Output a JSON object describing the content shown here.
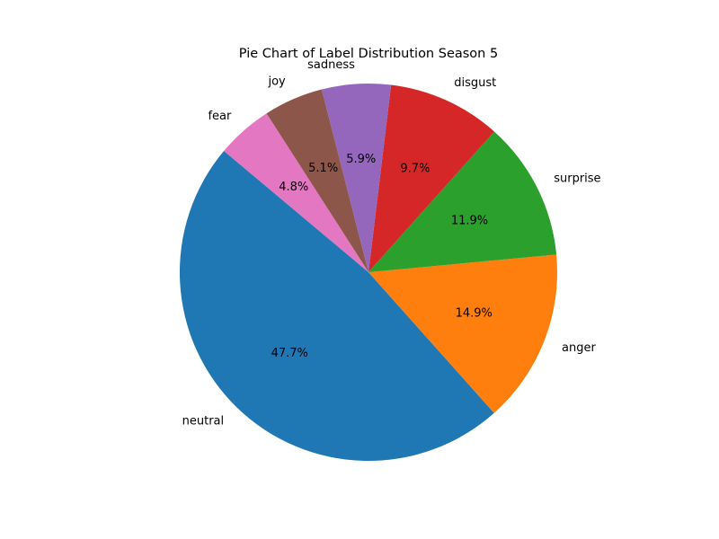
{
  "chart_data": {
    "type": "pie",
    "title": "Pie Chart of Label Distribution Season 5",
    "start_angle_deg": 140,
    "direction": "counterclockwise",
    "slices": [
      {
        "label": "neutral",
        "value": 47.7,
        "pct_text": "47.7%",
        "color": "#1f77b4"
      },
      {
        "label": "anger",
        "value": 14.9,
        "pct_text": "14.9%",
        "color": "#ff7f0e"
      },
      {
        "label": "surprise",
        "value": 11.9,
        "pct_text": "11.9%",
        "color": "#2ca02c"
      },
      {
        "label": "disgust",
        "value": 9.7,
        "pct_text": "9.7%",
        "color": "#d62728"
      },
      {
        "label": "sadness",
        "value": 5.9,
        "pct_text": "5.9%",
        "color": "#9467bd"
      },
      {
        "label": "joy",
        "value": 5.1,
        "pct_text": "5.1%",
        "color": "#8c564b"
      },
      {
        "label": "fear",
        "value": 4.8,
        "pct_text": "4.8%",
        "color": "#e377c2"
      }
    ]
  }
}
